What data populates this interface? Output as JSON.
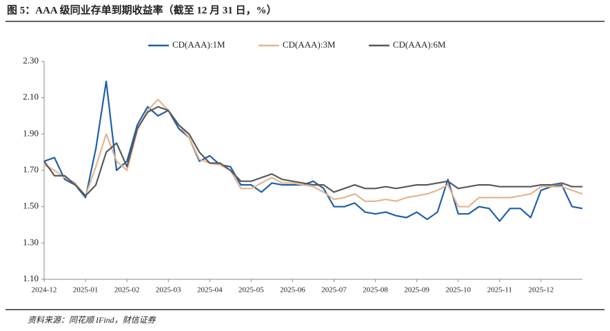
{
  "chart_data": {
    "type": "line",
    "title": "图 5：AAA 级同业存单到期收益率（截至 12 月 31 日，%）",
    "source": "资料来源：同花顺 IFind，财信证券",
    "categories": [
      "2024-12",
      null,
      null,
      null,
      "2025-01",
      null,
      null,
      null,
      "2025-02",
      null,
      null,
      null,
      "2025-03",
      null,
      null,
      null,
      "2025-04",
      null,
      null,
      null,
      "2025-05",
      null,
      null,
      null,
      "2025-06",
      null,
      null,
      null,
      "2025-07",
      null,
      null,
      null,
      "2025-08",
      null,
      null,
      null,
      "2025-09",
      null,
      null,
      null,
      "2025-10",
      null,
      null,
      null,
      "2025-11",
      null,
      null,
      null,
      "2025-12",
      null,
      null,
      null,
      null
    ],
    "series": [
      {
        "name": "CD(AAA):1M",
        "color": "#1f5fa8",
        "values": [
          1.75,
          1.77,
          1.65,
          1.62,
          1.55,
          1.82,
          2.19,
          1.7,
          1.75,
          1.95,
          2.05,
          2.0,
          2.03,
          1.93,
          1.88,
          1.75,
          1.78,
          1.73,
          1.72,
          1.62,
          1.62,
          1.58,
          1.63,
          1.62,
          1.62,
          1.62,
          1.64,
          1.6,
          1.5,
          1.5,
          1.52,
          1.47,
          1.46,
          1.47,
          1.45,
          1.44,
          1.47,
          1.43,
          1.47,
          1.65,
          1.46,
          1.46,
          1.5,
          1.49,
          1.42,
          1.49,
          1.49,
          1.44,
          1.59,
          1.61,
          1.62,
          1.5,
          1.49
        ]
      },
      {
        "name": "CD(AAA):3M",
        "color": "#e3b58e",
        "values": [
          1.73,
          1.7,
          1.66,
          1.63,
          1.56,
          1.72,
          1.9,
          1.75,
          1.7,
          1.92,
          2.03,
          2.09,
          2.03,
          1.95,
          1.88,
          1.76,
          1.74,
          1.73,
          1.7,
          1.6,
          1.6,
          1.63,
          1.66,
          1.63,
          1.63,
          1.62,
          1.61,
          1.58,
          1.54,
          1.55,
          1.57,
          1.53,
          1.53,
          1.54,
          1.53,
          1.55,
          1.56,
          1.57,
          1.59,
          1.62,
          1.5,
          1.5,
          1.55,
          1.55,
          1.55,
          1.55,
          1.56,
          1.57,
          1.61,
          1.61,
          1.61,
          1.59,
          1.57
        ]
      },
      {
        "name": "CD(AAA):6M",
        "color": "#595959",
        "values": [
          1.75,
          1.67,
          1.67,
          1.62,
          1.56,
          1.62,
          1.8,
          1.85,
          1.72,
          1.93,
          2.02,
          2.05,
          2.03,
          1.95,
          1.9,
          1.8,
          1.74,
          1.74,
          1.7,
          1.64,
          1.64,
          1.66,
          1.68,
          1.65,
          1.64,
          1.63,
          1.62,
          1.62,
          1.58,
          1.6,
          1.62,
          1.6,
          1.6,
          1.61,
          1.6,
          1.61,
          1.62,
          1.62,
          1.63,
          1.64,
          1.6,
          1.61,
          1.62,
          1.62,
          1.61,
          1.61,
          1.61,
          1.61,
          1.62,
          1.62,
          1.63,
          1.61,
          1.61
        ]
      }
    ],
    "ylim": [
      1.1,
      2.3
    ],
    "yticks": [
      {
        "value": 1.1,
        "label": "1.10"
      },
      {
        "value": 1.3,
        "label": "1.30"
      },
      {
        "value": 1.5,
        "label": "1.50"
      },
      {
        "value": 1.7,
        "label": "1.70"
      },
      {
        "value": 1.9,
        "label": "1.90"
      },
      {
        "value": 2.1,
        "label": "2.10"
      },
      {
        "value": 2.3,
        "label": "2.30"
      }
    ],
    "grid": false
  }
}
